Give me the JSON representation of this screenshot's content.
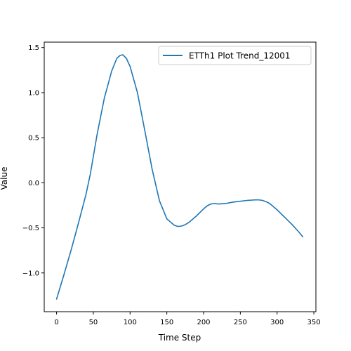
{
  "chart_data": {
    "type": "line",
    "title": "",
    "xlabel": "Time Step",
    "ylabel": "Value",
    "xlim": [
      -16.8,
      352.8
    ],
    "ylim": [
      -1.43,
      1.56
    ],
    "xticks": [
      0,
      50,
      100,
      150,
      200,
      250,
      300,
      350
    ],
    "yticks": [
      -1.0,
      -0.5,
      0.0,
      0.5,
      1.0,
      1.5
    ],
    "grid": false,
    "legend_position": "top-right",
    "series": [
      {
        "name": "ETTh1 Plot Trend_12001",
        "color": "#1f77b4",
        "x": [
          0,
          10,
          20,
          30,
          40,
          46,
          55,
          65,
          75,
          82,
          86,
          90,
          95,
          100,
          110,
          120,
          130,
          140,
          150,
          160,
          165,
          170,
          175,
          180,
          190,
          200,
          205,
          210,
          215,
          220,
          230,
          240,
          250,
          260,
          270,
          275,
          280,
          285,
          290,
          300,
          310,
          320,
          330,
          335
        ],
        "y": [
          -1.29,
          -1.02,
          -0.74,
          -0.44,
          -0.13,
          0.1,
          0.53,
          0.94,
          1.24,
          1.38,
          1.41,
          1.42,
          1.38,
          1.29,
          1.0,
          0.58,
          0.15,
          -0.2,
          -0.4,
          -0.47,
          -0.485,
          -0.48,
          -0.465,
          -0.44,
          -0.37,
          -0.29,
          -0.255,
          -0.235,
          -0.23,
          -0.235,
          -0.23,
          -0.215,
          -0.205,
          -0.195,
          -0.19,
          -0.19,
          -0.195,
          -0.21,
          -0.23,
          -0.3,
          -0.38,
          -0.46,
          -0.55,
          -0.6
        ]
      }
    ]
  }
}
